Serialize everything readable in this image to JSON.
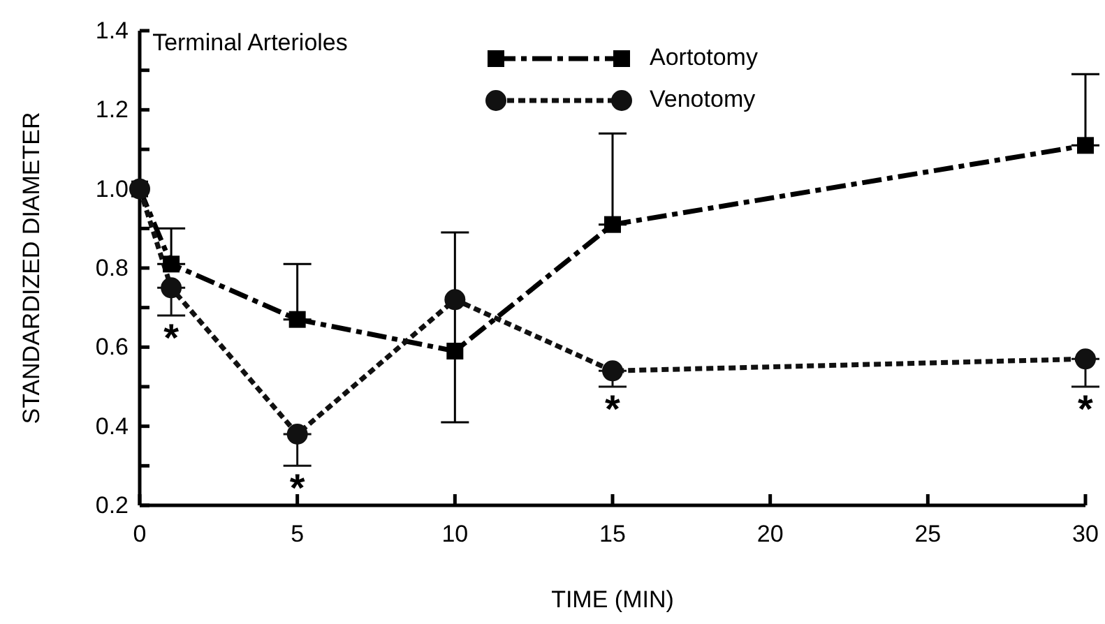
{
  "chart_data": {
    "type": "line",
    "title": "Terminal Arterioles",
    "xlabel": "TIME (MIN)",
    "ylabel": "STANDARDIZED DIAMETER",
    "x": [
      0,
      1,
      5,
      10,
      15,
      30
    ],
    "series": [
      {
        "name": "Aortotomy",
        "color": "#000000",
        "marker": "square",
        "line_style": "dashed",
        "values": [
          1.0,
          0.81,
          0.67,
          0.59,
          0.91,
          1.11
        ],
        "errors": [
          null,
          [
            0.81,
            0.9
          ],
          [
            0.67,
            0.81
          ],
          [
            0.41,
            0.89
          ],
          [
            0.91,
            1.14
          ],
          [
            1.11,
            1.29
          ]
        ]
      },
      {
        "name": "Venotomy",
        "color": "#111111",
        "marker": "circle",
        "line_style": "dotted",
        "values": [
          1.0,
          0.75,
          0.38,
          0.72,
          0.54,
          0.57
        ],
        "errors": [
          null,
          [
            0.68,
            0.75
          ],
          [
            0.3,
            0.38
          ],
          null,
          [
            0.5,
            0.54
          ],
          [
            0.5,
            0.57
          ]
        ]
      }
    ],
    "xlim": [
      0,
      30
    ],
    "xticks": [
      0,
      5,
      10,
      15,
      20,
      25,
      30
    ],
    "ylim": [
      0.2,
      1.4
    ],
    "yticks": [
      0.2,
      {
        "value": 0.3,
        "label": null
      },
      0.4,
      {
        "value": 0.5,
        "label": null
      },
      0.6,
      {
        "value": 0.7,
        "label": null
      },
      0.8,
      {
        "value": 0.9,
        "label": null
      },
      {
        "value": 1.0,
        "label": "1.0"
      },
      {
        "value": 1.1,
        "label": null
      },
      1.2,
      {
        "value": 1.3,
        "label": null
      },
      1.4
    ],
    "annotations": [
      {
        "text": "*",
        "x": 1,
        "y": 0.75
      },
      {
        "text": "*",
        "x": 5,
        "y": 0.38
      },
      {
        "text": "*",
        "x": 15,
        "y": 0.54
      },
      {
        "text": "*",
        "x": 30,
        "y": 0.57
      }
    ],
    "legend": "top right",
    "grid": false
  }
}
